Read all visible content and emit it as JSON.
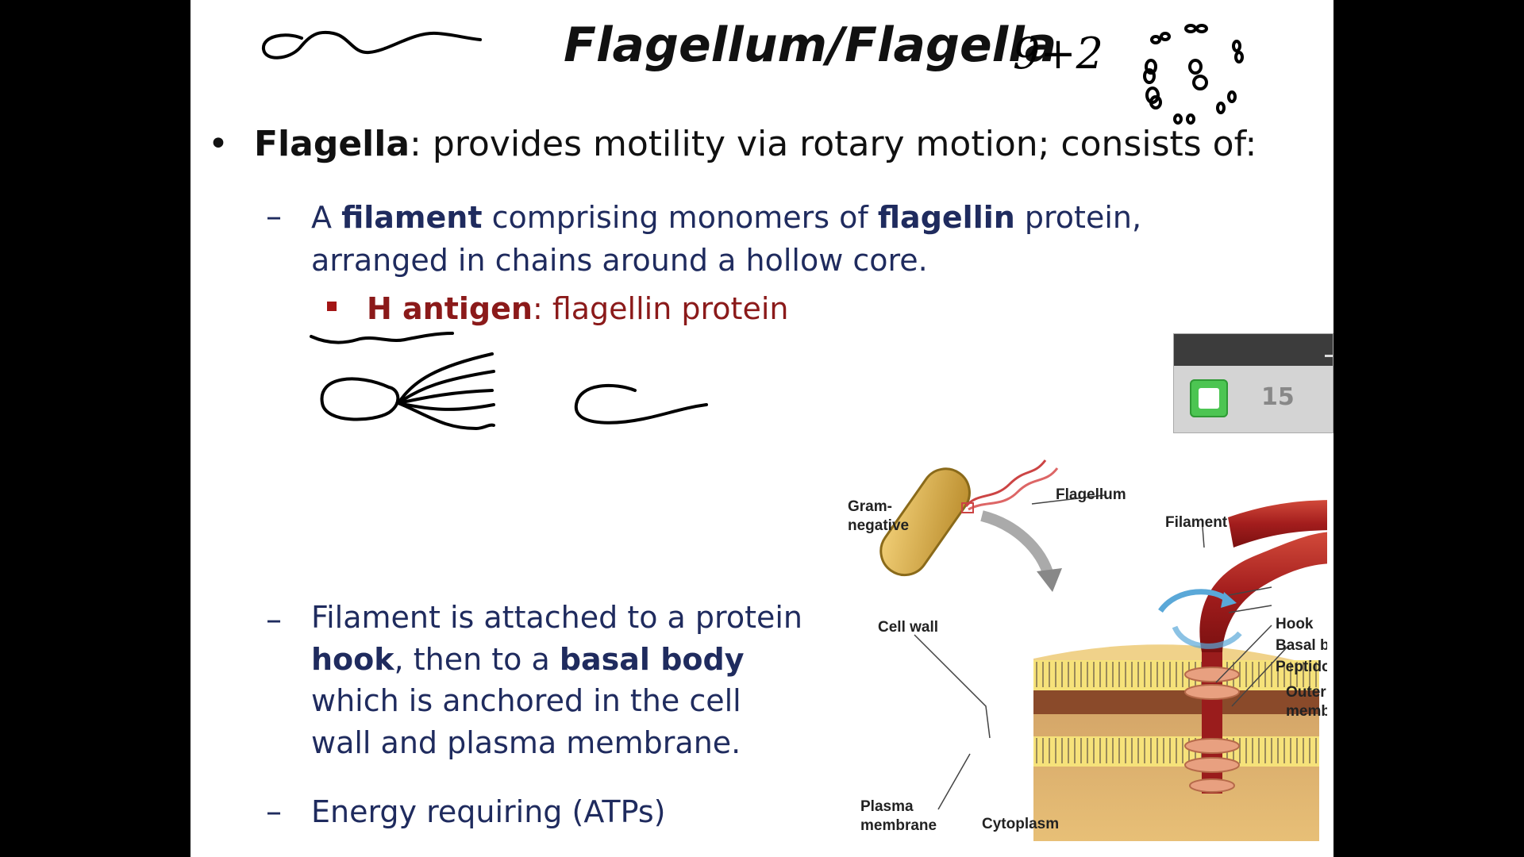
{
  "slide": {
    "title": "Flagellum/Flagella",
    "bullet_symbol": "•",
    "bullet_term": "Flagella",
    "bullet_rest": ":  provides motility via rotary motion; consists of:",
    "dash_symbol": "–",
    "sub1": {
      "a": "A ",
      "filament": "filament",
      "b": " comprising monomers of  ",
      "flagellin": "flagellin",
      "c": " protein, arranged in chains around a hollow core."
    },
    "h_antigen": {
      "term": "H antigen",
      "rest": ": flagellin protein"
    },
    "sub2": {
      "a": "Filament is attached to a protein ",
      "hook": "hook",
      "b": ", then to a ",
      "basal": "basal body",
      "c": " which is anchored in the cell wall and plasma membrane."
    },
    "sub3": "Energy requiring (ATPs)",
    "handwriting": {
      "note": "9+2"
    }
  },
  "widget": {
    "count": "15"
  },
  "figure": {
    "labels": {
      "flagellum": "Flagellum",
      "gram1": "Gram-",
      "gram2": "negative",
      "filament": "Filament",
      "cell_wall": "Cell wall",
      "hook": "Hook",
      "basal_body": "Basal body",
      "peptidoglycan": "Peptidoglycan",
      "outer1": "Outer",
      "outer2": "membrane",
      "plasma1": "Plasma",
      "plasma2": "membrane",
      "cytoplasm": "Cytoplasm"
    }
  },
  "colors": {
    "bullet_text": "#111111",
    "sub_text": "#1f2b5e",
    "h_antigen": "#8b1a1a",
    "filament_red": "#a31d1d"
  }
}
